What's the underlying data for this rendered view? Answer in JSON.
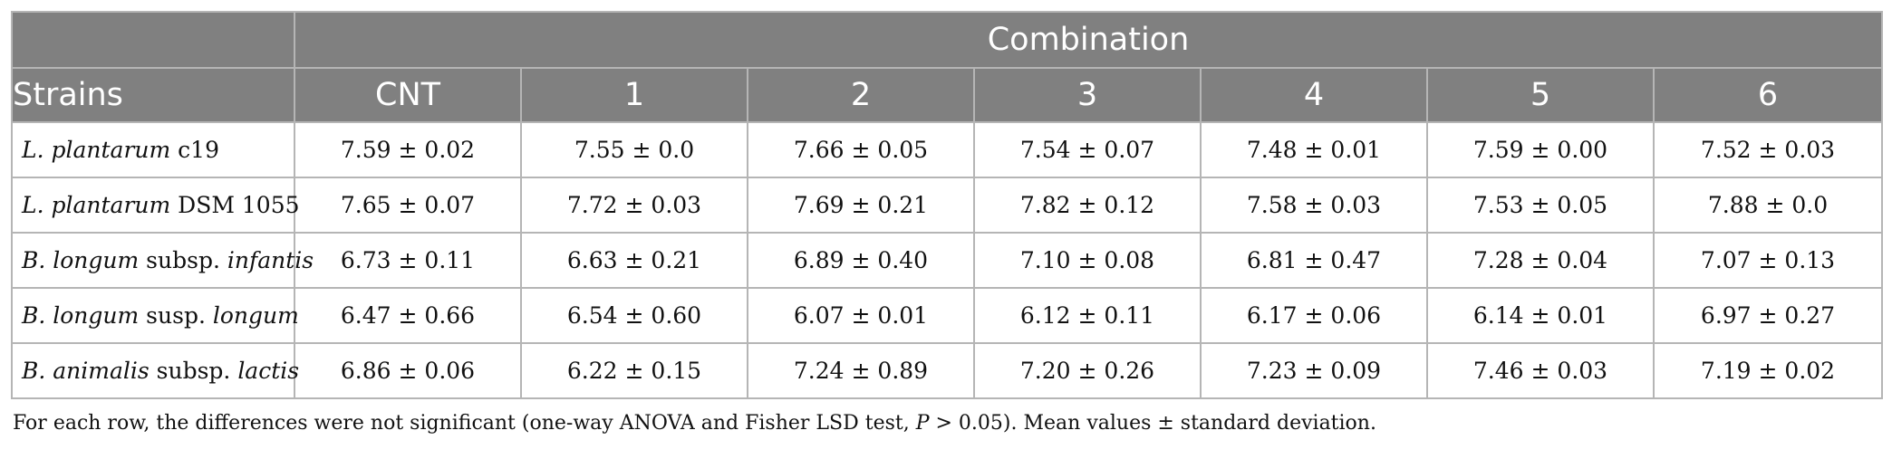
{
  "table": {
    "group_header": "Combination",
    "strain_header": "Strains",
    "columns": [
      "CNT",
      "1",
      "2",
      "3",
      "4",
      "5",
      "6"
    ],
    "rows": [
      {
        "strain": [
          {
            "text": "L. plantarum",
            "italic": true
          },
          {
            "text": " c19",
            "italic": false
          }
        ],
        "values": [
          "7.59 ± 0.02",
          "7.55 ± 0.0",
          "7.66 ± 0.05",
          "7.54 ± 0.07",
          "7.48 ± 0.01",
          "7.59 ± 0.00",
          "7.52 ± 0.03"
        ]
      },
      {
        "strain": [
          {
            "text": "L. plantarum",
            "italic": true
          },
          {
            "text": " DSM 1055",
            "italic": false
          }
        ],
        "values": [
          "7.65 ± 0.07",
          "7.72 ± 0.03",
          "7.69 ± 0.21",
          "7.82 ± 0.12",
          "7.58 ± 0.03",
          "7.53 ± 0.05",
          "7.88 ± 0.0"
        ]
      },
      {
        "strain": [
          {
            "text": "B. longum",
            "italic": true
          },
          {
            "text": " subsp. ",
            "italic": false
          },
          {
            "text": "infantis",
            "italic": true
          }
        ],
        "values": [
          "6.73 ± 0.11",
          "6.63 ± 0.21",
          "6.89 ± 0.40",
          "7.10 ± 0.08",
          "6.81 ± 0.47",
          "7.28 ± 0.04",
          "7.07 ± 0.13"
        ]
      },
      {
        "strain": [
          {
            "text": "B. longum",
            "italic": true
          },
          {
            "text": " susp. ",
            "italic": false
          },
          {
            "text": "longum",
            "italic": true
          }
        ],
        "values": [
          "6.47 ± 0.66",
          "6.54 ± 0.60",
          "6.07 ± 0.01",
          "6.12 ± 0.11",
          "6.17 ± 0.06",
          "6.14 ± 0.01",
          "6.97 ± 0.27"
        ]
      },
      {
        "strain": [
          {
            "text": " B. animalis",
            "italic": true
          },
          {
            "text": " subsp. ",
            "italic": false
          },
          {
            "text": "lactis",
            "italic": true
          }
        ],
        "values": [
          "6.86 ± 0.06",
          "6.22 ± 0.15",
          "7.24 ± 0.89",
          "7.20 ± 0.26",
          "7.23 ± 0.09",
          "7.46 ± 0.03",
          "7.19 ± 0.02"
        ]
      }
    ]
  },
  "footnote": {
    "before": "For each row, the differences were not significant (one-way ANOVA and Fisher LSD test, ",
    "p_symbol": "P",
    "after": " > 0.05). Mean values ± standard deviation."
  },
  "colors": {
    "header_bg": "#808080",
    "header_text": "#ffffff",
    "grid_line": "#b5b5b5"
  }
}
